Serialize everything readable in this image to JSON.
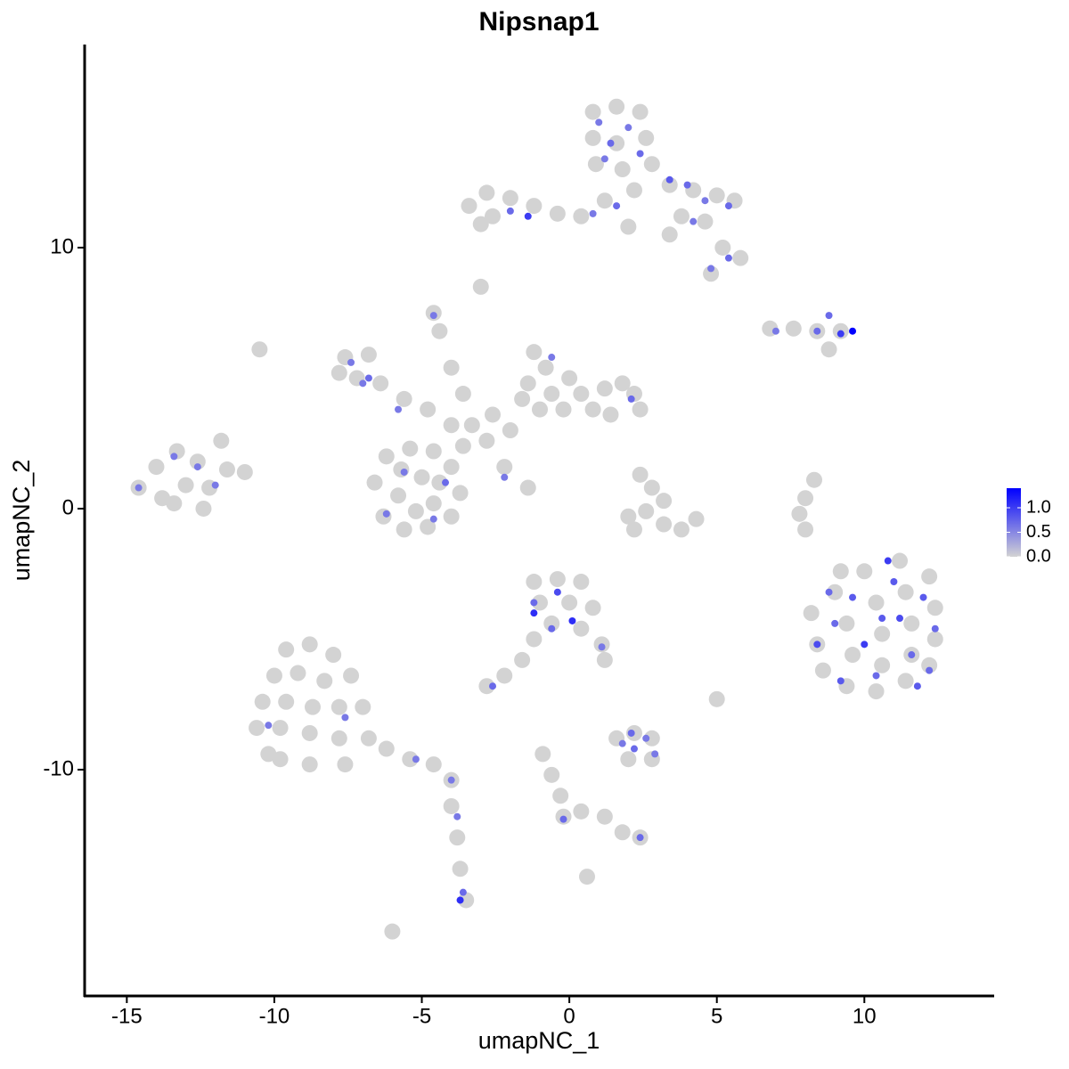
{
  "chart_data": {
    "type": "scatter",
    "title": "Nipsnap1",
    "xlabel": "umapNC_1",
    "ylabel": "umapNC_2",
    "xlim": [
      -16.43,
      14.37
    ],
    "ylim": [
      -18.67,
      17.78
    ],
    "xticks": [
      -15,
      -10,
      -5,
      0,
      5,
      10
    ],
    "yticks": [
      -10,
      0,
      10
    ],
    "color_low": "#d3d3d3",
    "color_high": "#0000ff",
    "colorbar_lim": [
      0,
      1.4
    ],
    "colorbar_ticks": [
      {
        "value": 0,
        "label": "0.0"
      },
      {
        "value": 0.5,
        "label": "0.5"
      },
      {
        "value": 1,
        "label": "1.0"
      }
    ],
    "x": [
      -14.6,
      -14,
      -13.3,
      -12.6,
      -13.8,
      -13,
      -12.2,
      -11.6,
      -11,
      -12.4,
      -13.4,
      -11.8,
      -6.6,
      -6.2,
      -5.4,
      -4.6,
      -4,
      -3.7,
      -4,
      -4.8,
      -5.6,
      -6.3,
      -5.8,
      -5,
      -4.6,
      -5.2,
      -4.4,
      -5.7,
      -7.6,
      -7.2,
      -6.8,
      -6.4,
      -5.6,
      -4.8,
      -4,
      -7.8,
      -3.3,
      -2.6,
      -2,
      -1.6,
      -2.8,
      -3.6,
      -2.2,
      -1.4,
      -4.4,
      -4,
      -3.6,
      -1.2,
      -0.8,
      -1.4,
      -0.6,
      0,
      0.4,
      0.8,
      1.2,
      1.8,
      2.2,
      2.4,
      1.4,
      -0.2,
      -1,
      0.8,
      1.6,
      2.4,
      0.8,
      1.6,
      2.6,
      0.9,
      1.8,
      2.8,
      2.2,
      -3.4,
      -2.8,
      -2,
      -1.2,
      -0.4,
      0.4,
      -2.6,
      -3,
      3.4,
      4.2,
      5,
      5.6,
      3.8,
      4.6,
      5.2,
      5.8,
      4.8,
      1.2,
      2,
      3.4,
      -3,
      -4.6,
      6.8,
      7.6,
      8.4,
      9.2,
      8.8,
      2.4,
      2.8,
      3.2,
      2.6,
      2,
      3.2,
      3.8,
      4.3,
      2.2,
      8.3,
      8,
      7.8,
      8,
      8.2,
      8.4,
      8.6,
      9,
      9.4,
      9.6,
      9.4,
      10,
      10.4,
      10.6,
      10.6,
      10.4,
      11.2,
      11.4,
      11.6,
      11.6,
      11.4,
      12.2,
      12.4,
      12.4,
      12.2,
      9.2,
      -1.2,
      -0.4,
      0.4,
      -1,
      0,
      0.8,
      -0.6,
      0.4,
      1.1,
      1.2,
      -1.2,
      -1.6,
      -2.2,
      -2.8,
      -9.6,
      -8.8,
      -8,
      -10,
      -9.2,
      -8.3,
      -7.4,
      -10.4,
      -9.6,
      -8.7,
      -7.8,
      -10.6,
      -9.8,
      -8.8,
      -7.8,
      -9.8,
      -8.8,
      -7.6,
      -7,
      -10.2,
      -6.8,
      -6.2,
      -5.4,
      -4.6,
      -4,
      -4,
      -3.8,
      -3.7,
      -3.5,
      1.6,
      2.2,
      2.8,
      2,
      2.8,
      -0.9,
      -0.6,
      -0.3,
      -0.2,
      0.4,
      1.2,
      1.8,
      2.4,
      0.6,
      -6,
      5,
      -10.5,
      1,
      1.4,
      2,
      2.4,
      1.2,
      3.4,
      4,
      4.6,
      5.4,
      4.2,
      5.4,
      4.8,
      -2,
      -1.4,
      0.8,
      1.6,
      7,
      8.4,
      9.6,
      9.2,
      8.8,
      -7.4,
      -6.8,
      -7,
      -5.8,
      -5.6,
      -4.2,
      -4.6,
      -6.2,
      -2.2,
      2.1,
      -0.6,
      -4.6,
      -13.4,
      -12.6,
      -14.6,
      -12,
      8.4,
      9,
      9.6,
      10,
      10.4,
      11,
      11.2,
      11.6,
      12,
      12.4,
      10.8,
      9.2,
      12.2,
      10.6,
      8.8,
      11.8,
      -1.2,
      -0.4,
      -1.2,
      0.1,
      -0.6,
      1.1,
      -2.6,
      -10.2,
      -7.6,
      -5.2,
      -4,
      -3.8,
      -3.6,
      -3.7,
      1.8,
      2.2,
      2.6,
      2.9,
      2.1,
      -0.2,
      2.4
    ],
    "values": [
      0.8,
      1.6,
      2.2,
      1.8,
      0.4,
      0.9,
      0.8,
      1.5,
      1.4,
      0,
      0.2,
      2.6,
      1,
      2,
      2.3,
      2.2,
      1.6,
      0.6,
      -0.3,
      -0.7,
      -0.8,
      -0.3,
      0.5,
      1.2,
      0.2,
      -0.1,
      1,
      1.5,
      5.8,
      5,
      5.9,
      4.8,
      4.2,
      3.8,
      3.2,
      5.2,
      3.2,
      3.6,
      3,
      4.2,
      2.6,
      2.4,
      1.6,
      0.8,
      6.8,
      5.4,
      4.4,
      6,
      5.4,
      4.8,
      4.4,
      5,
      4.4,
      3.8,
      4.6,
      4.8,
      4.4,
      3.8,
      3.6,
      3.8,
      3.8,
      15.2,
      15.4,
      15.2,
      14.2,
      14,
      14.2,
      13.2,
      13,
      13.2,
      12.2,
      11.6,
      12.1,
      11.9,
      11.6,
      11.3,
      11.2,
      11.2,
      10.9,
      12.4,
      12.2,
      12,
      11.8,
      11.2,
      11,
      10,
      9.6,
      9,
      11.8,
      10.8,
      10.5,
      8.5,
      7.5,
      6.9,
      6.9,
      6.8,
      6.8,
      6.1,
      1.3,
      0.8,
      0.3,
      -0.1,
      -0.3,
      -0.6,
      -0.8,
      -0.4,
      -0.8,
      1.1,
      0.4,
      -0.2,
      -0.8,
      -4,
      -5.2,
      -6.2,
      -3.2,
      -4.4,
      -5.6,
      -6.8,
      -2.4,
      -3.6,
      -4.8,
      -6,
      -7,
      -2,
      -3.2,
      -4.4,
      -5.6,
      -6.6,
      -2.6,
      -3.8,
      -5,
      -6,
      -2.4,
      -2.8,
      -2.7,
      -2.8,
      -3.6,
      -3.6,
      -3.8,
      -4.4,
      -4.6,
      -5.2,
      -5.8,
      -5,
      -5.8,
      -6.4,
      -6.8,
      -5.4,
      -5.2,
      -5.6,
      -6.4,
      -6.3,
      -6.6,
      -6.4,
      -7.4,
      -7.4,
      -7.6,
      -7.6,
      -8.4,
      -8.4,
      -8.6,
      -8.8,
      -9.6,
      -9.8,
      -9.8,
      -7.6,
      -9.4,
      -8.8,
      -9.2,
      -9.6,
      -9.8,
      -10.4,
      -11.4,
      -12.6,
      -13.8,
      -15,
      -8.8,
      -8.6,
      -8.8,
      -9.6,
      -9.6,
      -9.4,
      -10.2,
      -11,
      -11.8,
      -11.6,
      -11.8,
      -12.4,
      -12.6,
      -14.1,
      -16.2,
      -7.3,
      6.1,
      14.8,
      14,
      14.6,
      13.6,
      13.4,
      12.6,
      12.4,
      11.8,
      11.6,
      11,
      9.6,
      9.2,
      11.4,
      11.2,
      11.3,
      11.6,
      6.8,
      6.8,
      6.8,
      6.7,
      7.4,
      5.6,
      5,
      4.8,
      3.8,
      1.4,
      1,
      -0.4,
      -0.2,
      1.2,
      4.2,
      5.8,
      7.4,
      2,
      1.6,
      0.8,
      0.9,
      -5.2,
      -4.4,
      -3.4,
      -5.2,
      -6.4,
      -2.8,
      -4.2,
      -5.6,
      -3.4,
      -4.6,
      -2,
      -6.6,
      -6.2,
      -4.2,
      -3.2,
      -6.8,
      -3.6,
      -3.2,
      -4,
      -4.3,
      -4.6,
      -5.3,
      -6.8,
      -8.3,
      -8,
      -9.6,
      -10.4,
      -11.8,
      -14.7,
      -15,
      -9,
      -9.2,
      -8.8,
      -9.4,
      -8.6,
      -11.9,
      -12.6
    ],
    "color_values": [
      0,
      0,
      0,
      0,
      0,
      0,
      0,
      0,
      0,
      0,
      0,
      0,
      0,
      0,
      0,
      0,
      0,
      0,
      0,
      0,
      0,
      0,
      0,
      0,
      0,
      0,
      0,
      0,
      0,
      0,
      0,
      0,
      0,
      0,
      0,
      0,
      0,
      0,
      0,
      0,
      0,
      0,
      0,
      0,
      0,
      0,
      0,
      0,
      0,
      0,
      0,
      0,
      0,
      0,
      0,
      0,
      0,
      0,
      0,
      0,
      0,
      0,
      0,
      0,
      0,
      0,
      0,
      0,
      0,
      0,
      0,
      0,
      0,
      0,
      0,
      0,
      0,
      0,
      0,
      0,
      0,
      0,
      0,
      0,
      0,
      0,
      0,
      0,
      0,
      0,
      0,
      0,
      0,
      0,
      0,
      0,
      0,
      0,
      0,
      0,
      0,
      0,
      0,
      0,
      0,
      0,
      0,
      0,
      0,
      0,
      0,
      0,
      0,
      0,
      0,
      0,
      0,
      0,
      0,
      0,
      0,
      0,
      0,
      0,
      0,
      0,
      0,
      0,
      0,
      0,
      0,
      0,
      0,
      0,
      0,
      0,
      0,
      0,
      0,
      0,
      0,
      0,
      0,
      0,
      0,
      0,
      0,
      0,
      0,
      0,
      0,
      0,
      0,
      0,
      0,
      0,
      0,
      0,
      0,
      0,
      0,
      0,
      0,
      0,
      0,
      0,
      0,
      0,
      0,
      0,
      0,
      0,
      0,
      0,
      0,
      0,
      0,
      0,
      0,
      0,
      0,
      0,
      0,
      0,
      0,
      0,
      0,
      0,
      0,
      0,
      0,
      0,
      0,
      0.6,
      0.7,
      0.6,
      0.7,
      0.6,
      0.8,
      0.7,
      0.6,
      0.7,
      0.6,
      0.7,
      0.6,
      0.7,
      1,
      0.6,
      0.7,
      0.6,
      0.7,
      1.4,
      1,
      0.7,
      0.6,
      0.7,
      0.6,
      0.6,
      0.6,
      0.7,
      0.6,
      0.6,
      0.6,
      0.7,
      0.6,
      0.6,
      0.6,
      0.6,
      0.6,
      0.6,
      0.9,
      0.7,
      0.8,
      1,
      0.7,
      0.8,
      0.9,
      0.7,
      0.8,
      0.7,
      1,
      0.8,
      0.7,
      0.8,
      0.7,
      0.8,
      0.7,
      0.9,
      1.1,
      1.1,
      0.7,
      0.6,
      0.7,
      0.6,
      0.6,
      0.6,
      0.6,
      0.6,
      0.7,
      1.1,
      0.6,
      0.7,
      0.6,
      0.6,
      0.7,
      0.7,
      0.7
    ]
  }
}
